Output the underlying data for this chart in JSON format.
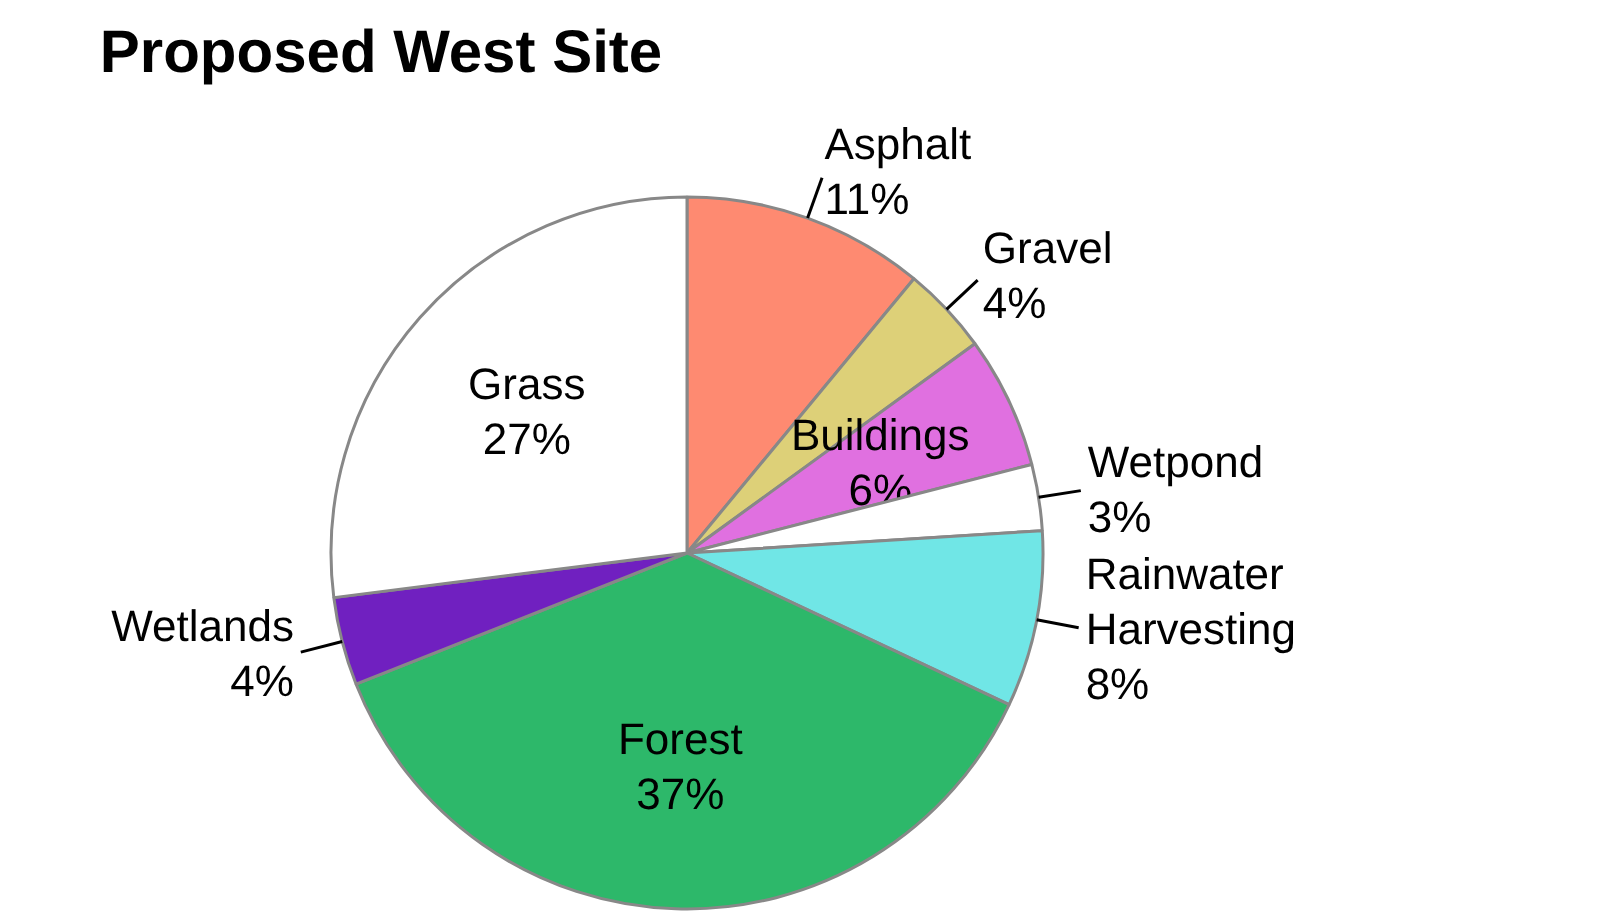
{
  "chart_data": {
    "type": "pie",
    "title": "Proposed West Site",
    "categories": [
      "Asphalt",
      "Gravel",
      "Buildings",
      "Wetpond",
      "Rainwater Harvesting",
      "Forest",
      "Wetlands",
      "Grass"
    ],
    "values": [
      11,
      4,
      6,
      3,
      8,
      37,
      4,
      27
    ],
    "colors": [
      "#fe8a71",
      "#ddd078",
      "#e070e0",
      "#ffffff",
      "#70e6e6",
      "#2db86a",
      "#7020c0",
      "#ffffff"
    ],
    "value_labels": [
      "11%",
      "4%",
      "6%",
      "3%",
      "8%",
      "37%",
      "4%",
      "27%"
    ]
  }
}
